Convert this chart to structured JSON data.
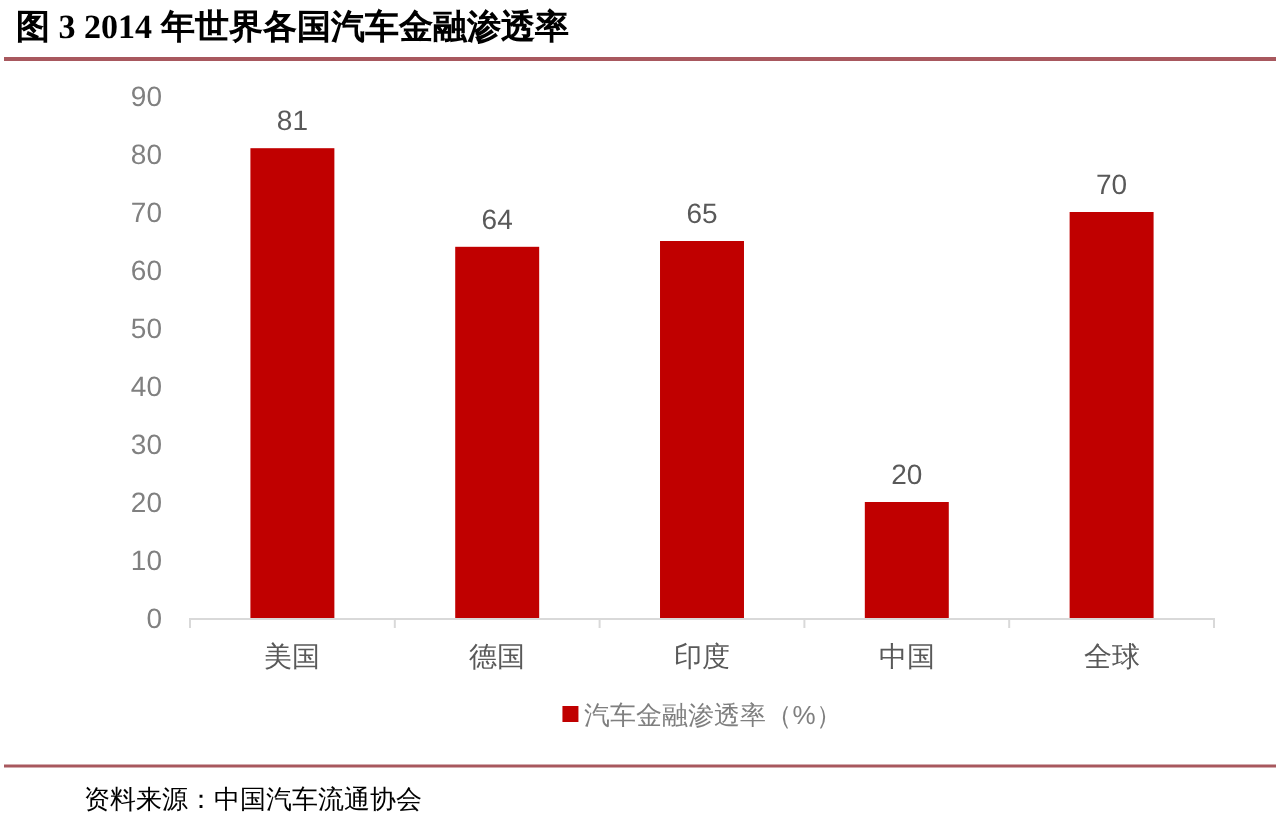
{
  "chart_data": {
    "type": "bar",
    "title": "图 3 2014 年世界各国汽车金融渗透率",
    "categories": [
      "美国",
      "德国",
      "印度",
      "中国",
      "全球"
    ],
    "series": [
      {
        "name": "汽车金融渗透率（%）",
        "color": "#c00000",
        "values": [
          81,
          64,
          65,
          20,
          70
        ]
      }
    ],
    "ylim": [
      0,
      90
    ],
    "yticks": [
      0,
      10,
      20,
      30,
      40,
      50,
      60,
      70,
      80,
      90
    ],
    "data_labels": true,
    "legend": "bottom",
    "annotations": [
      "资料来源：中国汽车流通协会"
    ]
  }
}
